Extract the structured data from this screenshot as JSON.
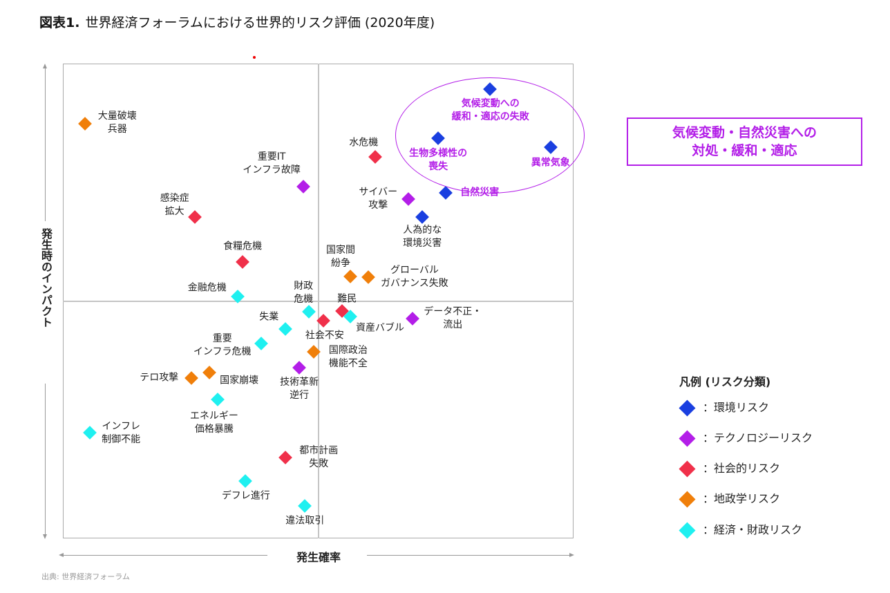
{
  "title": {
    "prefix": "図表1.",
    "text": "世界経済フォーラムにおける世界的リスク評価 (2020年度)"
  },
  "source": "出典: 世界経済フォーラム",
  "callout": {
    "line1": "気候変動・自然災害への",
    "line2": "対処・緩和・適応"
  },
  "chart_data": {
    "type": "scatter",
    "title": "世界経済フォーラムにおける世界的リスク評価 (2020年度)",
    "xlabel": "発生確率",
    "ylabel": "発生時のインパクト",
    "xlim": [
      0,
      10
    ],
    "ylim": [
      0,
      10
    ],
    "grid": "quadrant lines at midpoint",
    "legend_title": "凡例 (リスク分類)",
    "legend_placement": "bottom-right",
    "categories": [
      {
        "key": "env",
        "name": "：環境リスク",
        "color": "#1a3fe0"
      },
      {
        "key": "tech",
        "name": "：テクノロジーリスク",
        "color": "#b31ee8"
      },
      {
        "key": "soc",
        "name": "：社会的リスク",
        "color": "#f0304a"
      },
      {
        "key": "geo",
        "name": "：地政学リスク",
        "color": "#f07f0a"
      },
      {
        "key": "eco",
        "name": "：経済・財政リスク",
        "color": "#1ff0f0"
      }
    ],
    "points": [
      {
        "label": "大量破壊\n兵器",
        "cat": "geo",
        "x": 0.43,
        "y": 8.73
      },
      {
        "label": "気候変動への\n緩和・適応の失敗",
        "cat": "env",
        "x": 8.36,
        "y": 9.46,
        "highlight": true
      },
      {
        "label": "生物多様性の\n喪失",
        "cat": "env",
        "x": 7.35,
        "y": 8.43,
        "highlight": true
      },
      {
        "label": "異常気象",
        "cat": "env",
        "x": 9.55,
        "y": 8.24,
        "highlight": true
      },
      {
        "label": "自然災害",
        "cat": "env",
        "x": 7.5,
        "y": 7.28,
        "highlight": true
      },
      {
        "label": "人為的な\n環境災害",
        "cat": "env",
        "x": 7.04,
        "y": 6.77
      },
      {
        "label": "水危機",
        "cat": "soc",
        "x": 6.12,
        "y": 8.03
      },
      {
        "label": "重要IT\nインフラ故障",
        "cat": "tech",
        "x": 4.71,
        "y": 7.41
      },
      {
        "label": "サイバー\n攻撃",
        "cat": "tech",
        "x": 6.77,
        "y": 7.15
      },
      {
        "label": "感染症\n拡大",
        "cat": "soc",
        "x": 2.58,
        "y": 6.77
      },
      {
        "label": "食糧危機",
        "cat": "soc",
        "x": 3.52,
        "y": 5.82
      },
      {
        "label": "国家間\n紛争",
        "cat": "geo",
        "x": 5.63,
        "y": 5.52
      },
      {
        "label": "グローバル\nガバナンス失敗",
        "cat": "geo",
        "x": 5.98,
        "y": 5.5
      },
      {
        "label": "金融危機",
        "cat": "eco",
        "x": 3.42,
        "y": 5.09
      },
      {
        "label": "財政\n危機",
        "cat": "eco",
        "x": 4.82,
        "y": 4.77
      },
      {
        "label": "難民",
        "cat": "soc",
        "x": 5.47,
        "y": 4.79
      },
      {
        "label": "資産バブル",
        "cat": "eco",
        "x": 5.63,
        "y": 4.67
      },
      {
        "label": "社会不安",
        "cat": "soc",
        "x": 5.1,
        "y": 4.59
      },
      {
        "label": "データ不正・\n流出",
        "cat": "tech",
        "x": 6.85,
        "y": 4.63
      },
      {
        "label": "失業",
        "cat": "eco",
        "x": 4.36,
        "y": 4.41
      },
      {
        "label": "重要\nインフラ危機",
        "cat": "eco",
        "x": 3.88,
        "y": 4.1
      },
      {
        "label": "国際政治\n機能不全",
        "cat": "geo",
        "x": 4.91,
        "y": 3.93
      },
      {
        "label": "技術革新\n逆行",
        "cat": "tech",
        "x": 4.63,
        "y": 3.6
      },
      {
        "label": "テロ攻撃",
        "cat": "geo",
        "x": 2.52,
        "y": 3.38
      },
      {
        "label": "国家崩壊",
        "cat": "geo",
        "x": 2.87,
        "y": 3.49
      },
      {
        "label": "エネルギー\n価格暴騰",
        "cat": "eco",
        "x": 3.03,
        "y": 2.93
      },
      {
        "label": "インフレ\n制御不能",
        "cat": "eco",
        "x": 0.53,
        "y": 2.23
      },
      {
        "label": "都市計画\n失敗",
        "cat": "soc",
        "x": 4.36,
        "y": 1.7
      },
      {
        "label": "デフレ進行",
        "cat": "eco",
        "x": 3.57,
        "y": 1.21
      },
      {
        "label": "違法取引",
        "cat": "eco",
        "x": 4.74,
        "y": 0.68
      }
    ]
  }
}
